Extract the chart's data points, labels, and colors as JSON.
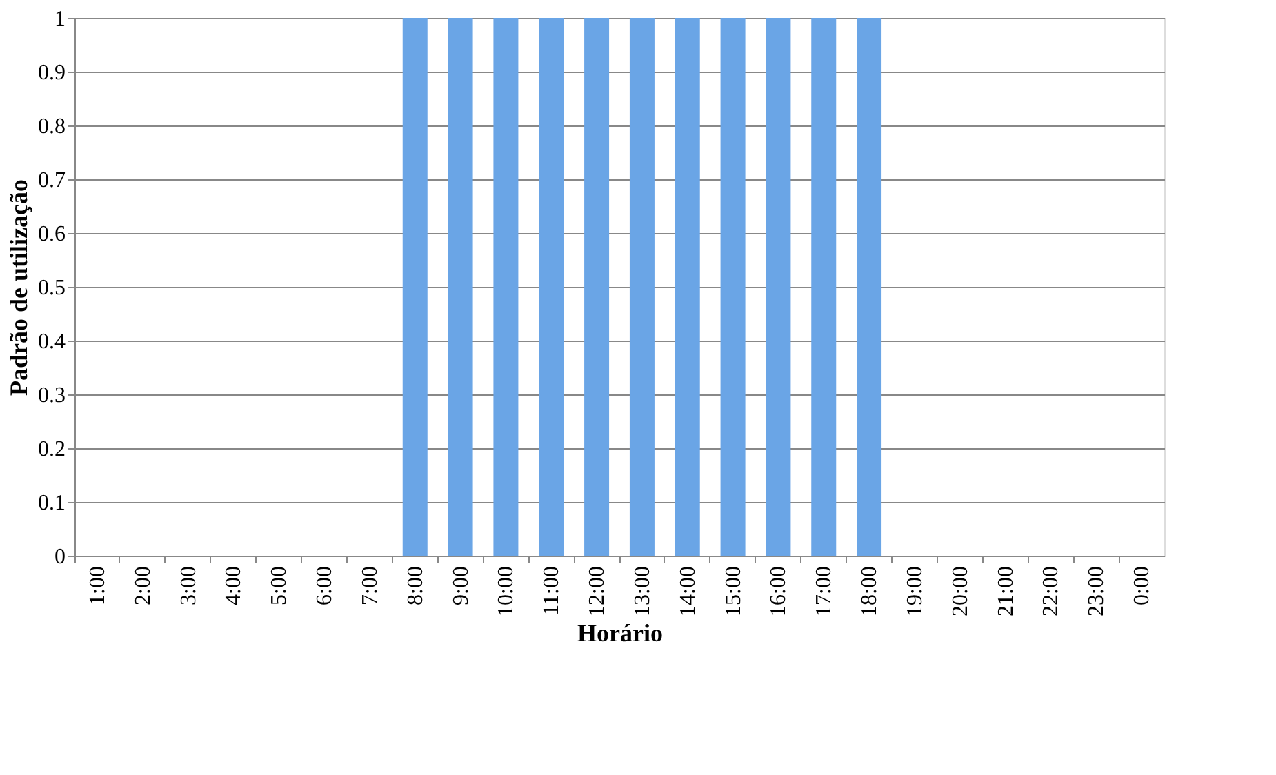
{
  "chart_data": {
    "type": "bar",
    "xlabel": "Horário",
    "ylabel": "Padrão de utilização",
    "categories": [
      "1:00",
      "2:00",
      "3:00",
      "4:00",
      "5:00",
      "6:00",
      "7:00",
      "8:00",
      "9:00",
      "10:00",
      "11:00",
      "12:00",
      "13:00",
      "14:00",
      "15:00",
      "16:00",
      "17:00",
      "18:00",
      "19:00",
      "20:00",
      "21:00",
      "22:00",
      "23:00",
      "0:00"
    ],
    "values": [
      0,
      0,
      0,
      0,
      0,
      0,
      0,
      1,
      1,
      1,
      1,
      1,
      1,
      1,
      1,
      1,
      1,
      1,
      0,
      0,
      0,
      0,
      0,
      0
    ],
    "color": "#6aa5e6",
    "ylim": [
      0,
      1
    ],
    "yticks": [
      0,
      0.1,
      0.2,
      0.3,
      0.4,
      0.5,
      0.6,
      0.7,
      0.8,
      0.9,
      1
    ],
    "grid": "y"
  }
}
